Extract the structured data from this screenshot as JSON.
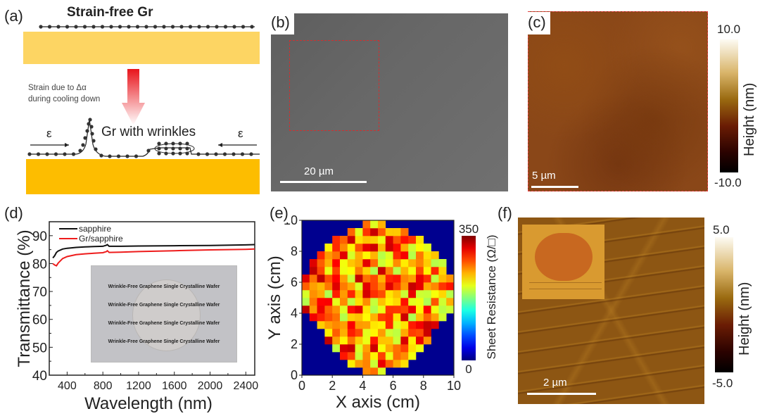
{
  "panels": {
    "a": {
      "label": "(a)",
      "title": "Strain-free Gr",
      "note_line1": "Strain due to Δα",
      "note_line2": "during cooling down",
      "wrinkle_label": "Gr with wrinkles",
      "strain_symbol": "ε",
      "colors": {
        "substrate_top": "#fdd563",
        "substrate_bottom": "#fdbd00",
        "arrow": "#e8141b"
      }
    },
    "b": {
      "label": "(b)",
      "scale_bar": "20 µm",
      "roi_color": "#d03030"
    },
    "c": {
      "label": "(c)",
      "scale_bar": "5 µm",
      "colorbar_max": "10.0",
      "colorbar_min": "-10.0",
      "colorbar_title": "Height (nm)"
    },
    "e": {
      "label": "(e)"
    },
    "d": {
      "label": "(d)"
    },
    "f": {
      "label": "(f)",
      "scale_bar": "2 µm",
      "colorbar_max": "5.0",
      "colorbar_min": "-5.0",
      "colorbar_title": "Height (nm)"
    }
  },
  "chart_data": [
    {
      "id": "d",
      "type": "line",
      "title": "",
      "xlabel": "Wavelength (nm)",
      "ylabel": "Transmittance (%)",
      "xlim": [
        200,
        2500
      ],
      "ylim": [
        40,
        95
      ],
      "xticks": [
        400,
        800,
        1200,
        1600,
        2000,
        2400
      ],
      "yticks": [
        40,
        50,
        60,
        70,
        80,
        90
      ],
      "legend": "top-left",
      "series": [
        {
          "name": "sapphire",
          "color": "#111111",
          "x": [
            240,
            260,
            280,
            300,
            350,
            400,
            500,
            600,
            700,
            800,
            840,
            850,
            870,
            1000,
            1200,
            1600,
            2000,
            2400,
            2500
          ],
          "y": [
            82.0,
            82.8,
            84.0,
            84.5,
            85.2,
            85.5,
            85.8,
            86.0,
            86.1,
            86.2,
            86.6,
            86.8,
            86.2,
            86.2,
            86.3,
            86.4,
            86.5,
            86.7,
            86.8
          ]
        },
        {
          "name": "Gr/sapphire",
          "color": "#ee1c1c",
          "x": [
            240,
            260,
            280,
            300,
            350,
            400,
            500,
            600,
            700,
            800,
            840,
            850,
            870,
            1000,
            1200,
            1600,
            2000,
            2400,
            2500
          ],
          "y": [
            80.0,
            79.5,
            79.2,
            80.2,
            81.8,
            82.5,
            83.2,
            83.5,
            83.7,
            83.9,
            84.3,
            84.6,
            84.0,
            84.1,
            84.3,
            84.6,
            84.9,
            85.1,
            85.2
          ]
        }
      ],
      "inset": {
        "lines": [
          {
            "text": "Wrinkle-Free Graphene Single Crystalline Wafer",
            "color": "#c0392b"
          },
          {
            "text": "Wrinkle-Free Graphene Single Crystalline Wafer",
            "color": "#2e8b2e"
          },
          {
            "text": "Wrinkle-Free Graphene Single Crystalline Wafer",
            "color": "#2f86c8"
          },
          {
            "text": "Wrinkle-Free Graphene Single Crystalline Wafer",
            "color": "#222222"
          }
        ]
      }
    },
    {
      "id": "e",
      "type": "heatmap",
      "xlabel": "X axis (cm)",
      "ylabel": "Y axis (cm)",
      "xlim": [
        0,
        10
      ],
      "ylim": [
        0,
        10
      ],
      "xticks": [
        0,
        2,
        4,
        6,
        8,
        10
      ],
      "yticks": [
        0,
        2,
        4,
        6,
        8,
        10
      ],
      "colorbar": {
        "title": "Sheet Resistance (Ω/□)",
        "min": 0,
        "max": 350,
        "min_label": "0",
        "max_label": "350"
      },
      "grid_size": 20,
      "background_value": 0,
      "row_extents": [
        [
          8,
          10
        ],
        [
          6,
          13
        ],
        [
          5,
          14
        ],
        [
          4,
          15
        ],
        [
          3,
          16
        ],
        [
          3,
          16
        ],
        [
          2,
          17
        ],
        [
          1,
          18
        ],
        [
          0,
          19
        ],
        [
          0,
          19
        ],
        [
          0,
          19
        ],
        [
          0,
          19
        ],
        [
          0,
          19
        ],
        [
          1,
          18
        ],
        [
          1,
          18
        ],
        [
          2,
          17
        ],
        [
          3,
          16
        ],
        [
          4,
          15
        ],
        [
          6,
          13
        ],
        [
          8,
          10
        ]
      ],
      "values_note": "Cell values (Ω/□) vary randomly between ~190 and ~330 across the wafer; generated deterministically from seed",
      "value_range": [
        190,
        330
      ],
      "seed": 7
    }
  ]
}
